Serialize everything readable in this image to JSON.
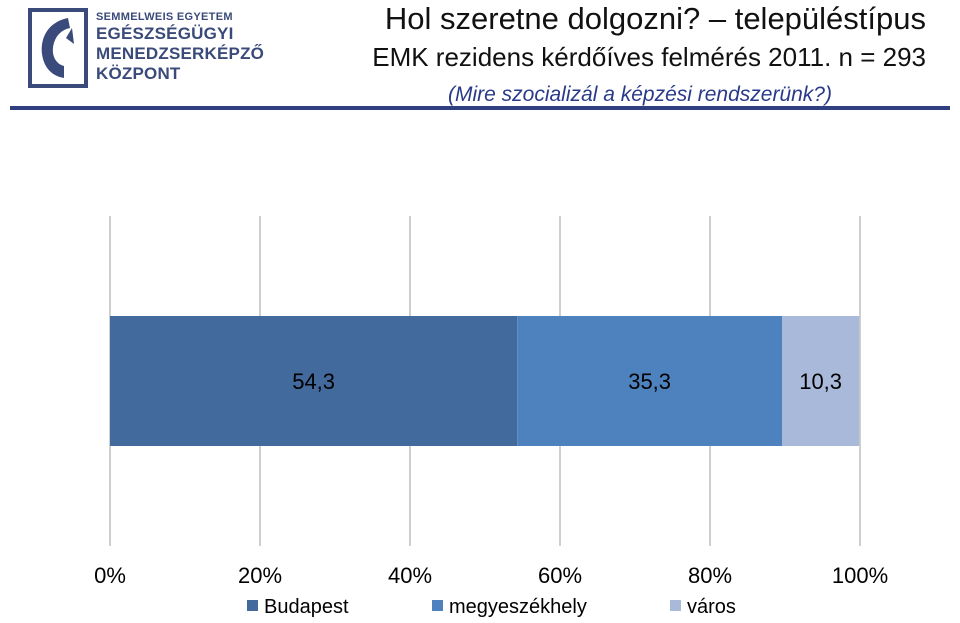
{
  "header": {
    "logo_lines": [
      "SEMMELWEIS EGYETEM",
      "EGÉSZSÉGÜGYI",
      "MENEDZSERKÉPZŐ",
      "KÖZPONT"
    ],
    "logo_icon": "semmelweis-logo-icon",
    "title_line1": "Hol szeretne dolgozni? – településtípus",
    "title_line2": "EMK rezidens kérdőíves felmérés 2011. n = 293",
    "subtitle": "(Mire szocializál a képzési rendszerünk?)"
  },
  "colors": {
    "header_rule": "#2f3f80",
    "subtitle": "#2a3a8a",
    "gridline": "#bfbfbf",
    "logo": "#3a4a7a"
  },
  "chart_data": {
    "type": "bar",
    "orientation": "horizontal",
    "stacked": "percent",
    "categories": [
      ""
    ],
    "series": [
      {
        "name": "Budapest",
        "values": [
          54.3
        ],
        "label": "54,3",
        "color": "#426a9c"
      },
      {
        "name": "megyeszékhely",
        "values": [
          35.3
        ],
        "label": "35,3",
        "color": "#4e82bf"
      },
      {
        "name": "város",
        "values": [
          10.3
        ],
        "label": "10,3",
        "color": "#a8b9d9"
      }
    ],
    "xlim": [
      0,
      100
    ],
    "x_ticks": [
      0,
      20,
      40,
      60,
      80,
      100
    ],
    "x_tick_labels": [
      "0%",
      "20%",
      "40%",
      "60%",
      "80%",
      "100%"
    ],
    "grid": true,
    "legend": "bottom",
    "title": "",
    "xlabel": "",
    "ylabel": ""
  }
}
